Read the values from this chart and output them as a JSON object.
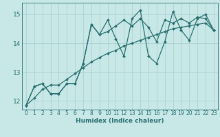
{
  "xlabel": "Humidex (Indice chaleur)",
  "xlim": [
    -0.5,
    23.5
  ],
  "ylim": [
    11.7,
    15.4
  ],
  "yticks": [
    12,
    13,
    14,
    15
  ],
  "xticks": [
    0,
    1,
    2,
    3,
    4,
    5,
    6,
    7,
    8,
    9,
    10,
    11,
    12,
    13,
    14,
    15,
    16,
    17,
    18,
    19,
    20,
    21,
    22,
    23
  ],
  "bg_color": "#c8e8e8",
  "line_color": "#2a6e6e",
  "grid_color": "#a8cccc",
  "series_spiky": [
    11.85,
    12.5,
    12.6,
    12.25,
    12.25,
    12.6,
    12.6,
    13.3,
    14.65,
    14.3,
    14.8,
    14.15,
    13.55,
    14.85,
    15.15,
    13.55,
    13.3,
    14.05,
    15.1,
    14.45,
    14.1,
    14.85,
    15.0,
    14.45
  ],
  "series_curved": [
    11.85,
    12.5,
    12.6,
    12.25,
    12.25,
    12.6,
    12.6,
    13.3,
    14.65,
    14.3,
    14.4,
    14.6,
    14.8,
    14.6,
    14.85,
    14.55,
    14.05,
    14.8,
    14.7,
    14.85,
    14.7,
    14.9,
    14.85,
    14.45
  ],
  "series_linear": [
    11.85,
    12.1,
    12.4,
    12.55,
    12.55,
    12.75,
    12.95,
    13.15,
    13.35,
    13.5,
    13.65,
    13.75,
    13.9,
    14.0,
    14.1,
    14.2,
    14.3,
    14.4,
    14.5,
    14.55,
    14.6,
    14.65,
    14.7,
    14.45
  ],
  "markersize": 2.0,
  "linewidth": 0.9,
  "tick_fontsize": 5.5,
  "xlabel_fontsize": 6.5
}
